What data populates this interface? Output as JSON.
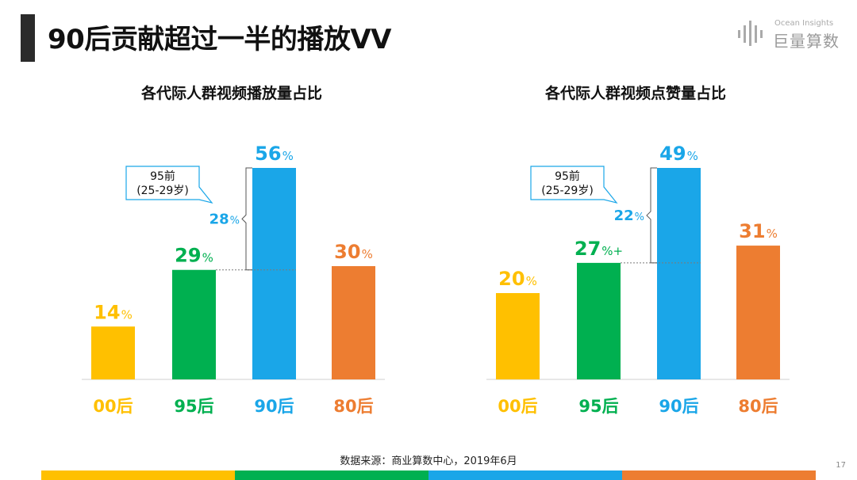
{
  "page": {
    "title": "90后贡献超过一半的播放VV",
    "logo_en": "Ocean Insights",
    "logo_cn": "巨量算数",
    "source": "数据来源：商业算数中心，2019年6月",
    "page_number": "17"
  },
  "colors": {
    "gen00": "#FFC000",
    "gen95": "#00B050",
    "gen90": "#1AA6E8",
    "gen80": "#ED7D31"
  },
  "callout": {
    "line1": "95前",
    "line2": "(25-29岁)"
  },
  "chart_data": [
    {
      "type": "bar",
      "title": "各代际人群视频播放量占比",
      "categories": [
        "00后",
        "95后",
        "90后",
        "80后"
      ],
      "values": [
        14,
        29,
        56,
        30
      ],
      "value_labels": [
        "14%",
        "29%",
        "56%",
        "30%"
      ],
      "bracket_value_label": "28%",
      "bracket_range": [
        29,
        56
      ],
      "ylim": [
        0,
        56
      ]
    },
    {
      "type": "bar",
      "title": "各代际人群视频点赞量占比",
      "categories": [
        "00后",
        "95后",
        "90后",
        "80后"
      ],
      "values": [
        20,
        27,
        49,
        31
      ],
      "value_labels": [
        "20%",
        "27%+",
        "49%",
        "31%"
      ],
      "bracket_value_label": "22%",
      "bracket_range": [
        27,
        49
      ],
      "ylim": [
        0,
        49
      ]
    }
  ]
}
